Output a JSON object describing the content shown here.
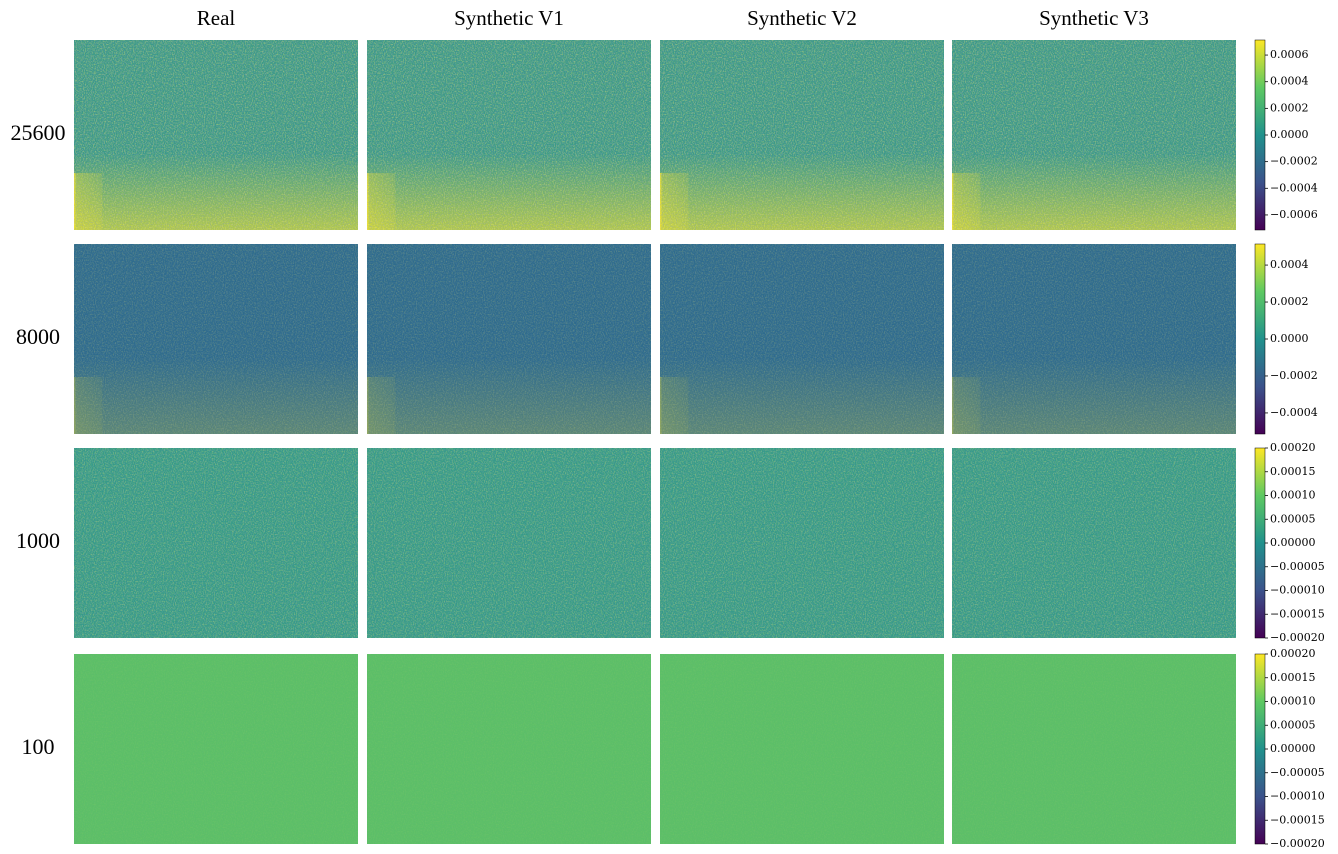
{
  "columns": [
    "Real",
    "Synthetic V1",
    "Synthetic V2",
    "Synthetic V3"
  ],
  "rows": [
    {
      "label": "25600",
      "color": "#3b9a88",
      "colorbar": {
        "lim": [
          -0.000713,
          0.000713
        ],
        "ticks": [
          0.0006,
          0.0004,
          0.0002,
          {
            "value": 0,
            "label": "0.0000"
          },
          {
            "value": -0.0002,
            "label": "−0.0002"
          },
          {
            "value": -0.0004,
            "label": "−0.0004"
          },
          {
            "value": -0.0006,
            "label": "−0.0006"
          }
        ]
      }
    },
    {
      "label": "8000",
      "color": "#2e6b8d",
      "colorbar": {
        "lim": [
          -0.000514,
          0.000514
        ],
        "ticks": [
          0.0004,
          0.0002,
          {
            "value": 0,
            "label": "0.0000"
          },
          {
            "value": -0.0002,
            "label": "−0.0002"
          },
          {
            "value": -0.0004,
            "label": "−0.0004"
          }
        ]
      }
    },
    {
      "label": "1000",
      "color": "#359b88",
      "colorbar": {
        "lim": [
          -0.0002,
          0.0002
        ],
        "ticks": [
          {
            "value": 0.0002,
            "label": "0.00020"
          },
          0.00015,
          {
            "value": 0.0001,
            "label": "0.00010"
          },
          5e-05,
          {
            "value": 0,
            "label": "0.00000"
          },
          {
            "value": -5e-05,
            "label": "−0.00005"
          },
          {
            "value": -0.0001,
            "label": "−0.00010"
          },
          {
            "value": -0.00015,
            "label": "−0.00015"
          },
          {
            "value": -0.0002,
            "label": "−0.00020"
          }
        ]
      }
    },
    {
      "label": "100",
      "color": "#5cbf67",
      "colorbar": {
        "lim": [
          -0.0002,
          0.0002
        ],
        "ticks": [
          {
            "value": 0.0002,
            "label": "0.00020"
          },
          0.00015,
          {
            "value": 0.0001,
            "label": "0.00010"
          },
          5e-05,
          {
            "value": 0,
            "label": "0.00000"
          },
          {
            "value": -5e-05,
            "label": "−0.00005"
          },
          {
            "value": -0.0001,
            "label": "−0.00010"
          },
          {
            "value": -0.00015,
            "label": "−0.00015"
          },
          {
            "value": -0.0002,
            "label": "−0.00020"
          }
        ]
      }
    }
  ]
}
